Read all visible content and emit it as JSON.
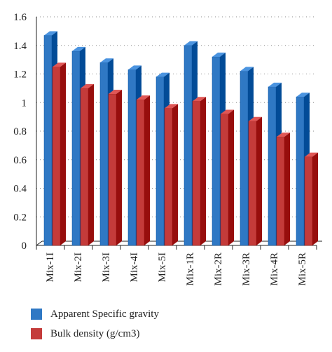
{
  "colors": {
    "series_1": "#2f78c4",
    "series_2": "#c43b3a",
    "axis": "#222222",
    "grid": "#8a8a8a"
  },
  "legend": {
    "item_1": "Apparent Specific gravity",
    "item_2": "Bulk density (g/cm3)"
  },
  "chart_data": {
    "type": "bar",
    "title": "",
    "xlabel": "",
    "ylabel": "",
    "categories": [
      "Mix-1I",
      "Mix-2I",
      "Mix-3I",
      "Mix-4I",
      "Mix-5I",
      "Mix-1R",
      "Mix-2R",
      "Mix-3R",
      "Mix-4R",
      "Mix-5R"
    ],
    "series": [
      {
        "name": "Apparent Specific gravity",
        "values": [
          1.47,
          1.36,
          1.28,
          1.23,
          1.18,
          1.4,
          1.32,
          1.22,
          1.11,
          1.04
        ]
      },
      {
        "name": "Bulk density (g/cm3)",
        "values": [
          1.25,
          1.1,
          1.06,
          1.02,
          0.96,
          1.01,
          0.92,
          0.87,
          0.76,
          0.62
        ]
      }
    ],
    "ylim": [
      0,
      1.6
    ],
    "yticks": [
      0,
      0.2,
      0.4,
      0.6,
      0.8,
      1,
      1.2,
      1.4,
      1.6
    ],
    "grid": true,
    "legend_position": "bottom"
  }
}
